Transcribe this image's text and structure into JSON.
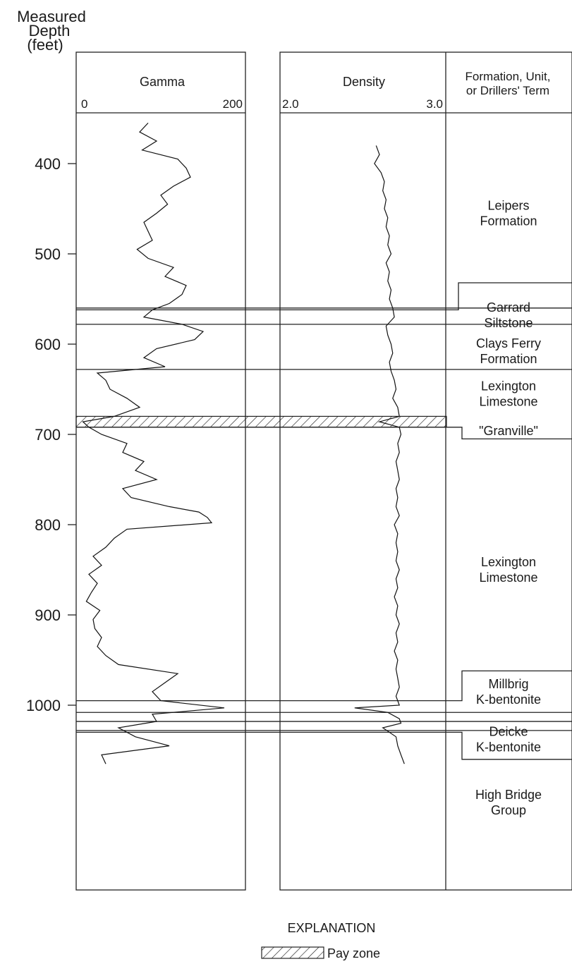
{
  "depth_header": [
    "Measured",
    "Depth",
    "(feet)"
  ],
  "tracks": {
    "gamma": {
      "title": "Gamma",
      "min_label": "0",
      "max_label": "200"
    },
    "density": {
      "title": "Density",
      "min_label": "2.0",
      "max_label": "3.0"
    },
    "formation": {
      "title_lines": [
        "Formation, Unit,",
        "or Drillers' Term"
      ]
    }
  },
  "depth_ticks": [
    "400",
    "500",
    "600",
    "700",
    "800",
    "900",
    "1000"
  ],
  "formations": [
    {
      "lines": [
        "Leipers",
        "Formation"
      ],
      "center_depth": 455
    },
    {
      "lines": [
        "Garrard",
        "Siltstone"
      ],
      "center_depth": 568
    },
    {
      "lines": [
        "Clays Ferry",
        "Formation"
      ],
      "center_depth": 608
    },
    {
      "lines": [
        "Lexington",
        "Limestone"
      ],
      "center_depth": 655
    },
    {
      "lines": [
        "\"Granville\""
      ],
      "center_depth": 696
    },
    {
      "lines": [
        "Lexington",
        "Limestone"
      ],
      "center_depth": 850
    },
    {
      "lines": [
        "Millbrig",
        "K-bentonite"
      ],
      "center_depth": 985
    },
    {
      "lines": [
        "Deicke",
        "K-bentonite"
      ],
      "center_depth": 1038
    },
    {
      "lines": [
        "High Bridge",
        "Group"
      ],
      "center_depth": 1108
    }
  ],
  "explanation": {
    "title": "EXPLANATION",
    "pay_zone_label": "Pay zone"
  },
  "chart_data": {
    "type": "line",
    "y_axis": {
      "label": "Measured Depth (feet)",
      "range": [
        352,
        1152
      ],
      "inverted": true
    },
    "series": [
      {
        "name": "Gamma",
        "x_range": [
          0,
          200
        ],
        "depth": [
          355,
          365,
          375,
          385,
          395,
          405,
          415,
          425,
          435,
          445,
          455,
          465,
          475,
          485,
          495,
          505,
          515,
          525,
          535,
          545,
          555,
          562,
          570,
          578,
          586,
          595,
          605,
          615,
          625,
          632,
          640,
          650,
          660,
          670,
          680,
          686,
          692,
          700,
          710,
          720,
          730,
          740,
          750,
          760,
          770,
          780,
          786,
          792,
          798,
          805,
          815,
          825,
          835,
          845,
          855,
          865,
          875,
          885,
          895,
          905,
          915,
          925,
          935,
          945,
          955,
          965,
          975,
          985,
          995,
          1003,
          1010,
          1018,
          1025,
          1035,
          1045,
          1055,
          1065
        ],
        "values": [
          85,
          75,
          95,
          78,
          120,
          130,
          135,
          115,
          100,
          108,
          95,
          80,
          85,
          90,
          72,
          85,
          115,
          105,
          130,
          125,
          110,
          90,
          80,
          125,
          150,
          140,
          95,
          80,
          105,
          25,
          35,
          40,
          60,
          75,
          45,
          8,
          15,
          30,
          60,
          55,
          80,
          70,
          95,
          55,
          65,
          110,
          145,
          155,
          160,
          60,
          45,
          35,
          20,
          30,
          15,
          25,
          18,
          12,
          28,
          20,
          22,
          30,
          25,
          35,
          50,
          120,
          105,
          90,
          100,
          175,
          90,
          95,
          50,
          70,
          110,
          30,
          35
        ]
      },
      {
        "name": "Density",
        "x_range": [
          2.0,
          3.0
        ],
        "depth": [
          380,
          390,
          400,
          410,
          420,
          430,
          440,
          450,
          460,
          470,
          480,
          490,
          500,
          510,
          520,
          530,
          540,
          550,
          560,
          570,
          580,
          590,
          600,
          610,
          620,
          630,
          640,
          650,
          660,
          670,
          680,
          686,
          692,
          700,
          710,
          720,
          730,
          740,
          750,
          760,
          770,
          780,
          790,
          800,
          810,
          820,
          830,
          840,
          850,
          860,
          870,
          880,
          890,
          900,
          910,
          920,
          930,
          940,
          950,
          960,
          970,
          980,
          990,
          1000,
          1003,
          1008,
          1015,
          1020,
          1025,
          1035,
          1045,
          1055,
          1065
        ],
        "values": [
          2.58,
          2.6,
          2.57,
          2.61,
          2.63,
          2.62,
          2.64,
          2.63,
          2.65,
          2.64,
          2.66,
          2.65,
          2.67,
          2.64,
          2.66,
          2.65,
          2.67,
          2.66,
          2.68,
          2.69,
          2.64,
          2.65,
          2.67,
          2.68,
          2.66,
          2.67,
          2.69,
          2.7,
          2.68,
          2.71,
          2.72,
          2.6,
          2.72,
          2.73,
          2.71,
          2.72,
          2.7,
          2.71,
          2.72,
          2.7,
          2.71,
          2.7,
          2.72,
          2.69,
          2.71,
          2.7,
          2.71,
          2.7,
          2.72,
          2.7,
          2.71,
          2.69,
          2.71,
          2.7,
          2.72,
          2.7,
          2.71,
          2.69,
          2.71,
          2.7,
          2.71,
          2.72,
          2.7,
          2.72,
          2.45,
          2.65,
          2.72,
          2.73,
          2.62,
          2.7,
          2.71,
          2.73,
          2.75
        ]
      }
    ],
    "pay_zone": {
      "top": 680,
      "bottom": 692
    }
  }
}
